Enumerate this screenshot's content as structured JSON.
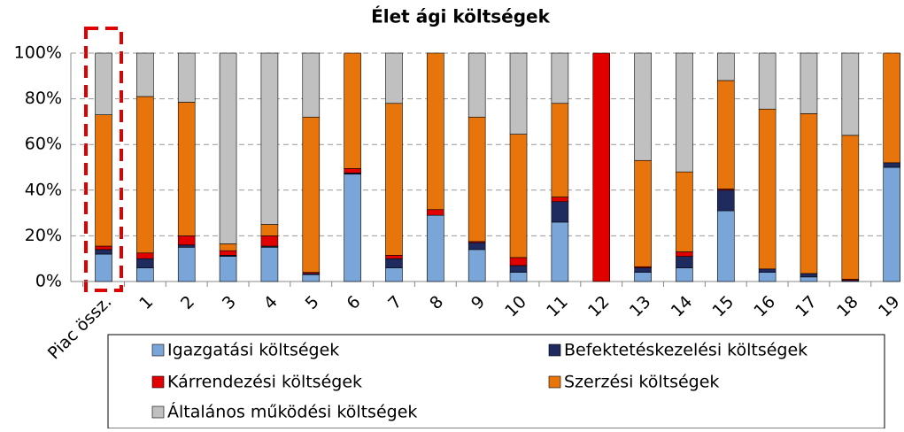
{
  "chart_data": {
    "type": "stacked_bar_100",
    "title": "Élet ági költségek",
    "categories": [
      "Piac össz.",
      "1",
      "2",
      "3",
      "4",
      "5",
      "6",
      "7",
      "8",
      "9",
      "10",
      "11",
      "12",
      "13",
      "14",
      "15",
      "16",
      "17",
      "18",
      "19"
    ],
    "series": [
      {
        "name": "Igazgatási költségek",
        "color": "#7aa5d8",
        "values": [
          12,
          6,
          15,
          11,
          15,
          3,
          47,
          6,
          29,
          14,
          4,
          26,
          0,
          4,
          6,
          31,
          4,
          2,
          0,
          50
        ]
      },
      {
        "name": "Befektetéskezelési költségek",
        "color": "#1f2a5e",
        "values": [
          2,
          4,
          1,
          0.5,
          0.5,
          0.5,
          0.5,
          4,
          0,
          3,
          3,
          9,
          0,
          2,
          5,
          9,
          1.5,
          1.5,
          0.5,
          2
        ]
      },
      {
        "name": "Kárrendezési költségek",
        "color": "#e00000",
        "values": [
          1.5,
          2.5,
          4,
          2,
          4.5,
          0.5,
          2,
          1.5,
          2.5,
          0.5,
          3.5,
          2,
          100,
          0.5,
          2,
          0.5,
          0,
          0,
          0.5,
          0
        ]
      },
      {
        "name": "Szerzési költségek",
        "color": "#e8740c",
        "values": [
          57.5,
          68.5,
          58.5,
          3,
          5,
          68,
          50.5,
          66.5,
          68.5,
          54.5,
          54,
          41,
          0,
          46.5,
          35,
          47.5,
          70,
          70,
          63,
          48
        ]
      },
      {
        "name": "Általános működési költségek",
        "color": "#c0c0c0",
        "values": [
          27,
          19,
          21.5,
          83.5,
          75,
          28,
          0,
          22,
          0,
          28,
          35.5,
          22,
          0,
          47,
          52,
          12,
          24.5,
          26.5,
          36,
          0
        ]
      }
    ],
    "ylim": [
      0,
      100
    ],
    "yticks": [
      {
        "value": 0,
        "label": "0%"
      },
      {
        "value": 20,
        "label": "20%"
      },
      {
        "value": 40,
        "label": "40%"
      },
      {
        "value": 60,
        "label": "60%"
      },
      {
        "value": 80,
        "label": "80%"
      },
      {
        "value": 100,
        "label": "100%"
      }
    ],
    "grid": true
  }
}
